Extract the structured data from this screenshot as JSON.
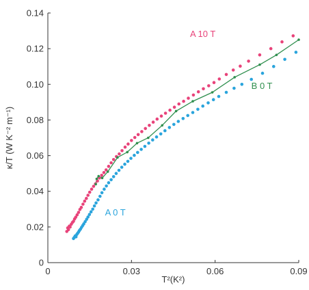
{
  "chart_data": {
    "type": "scatter",
    "xlabel": "T²(K²)",
    "ylabel": "κ/T (W K⁻² m⁻¹)",
    "xlim": [
      0,
      0.09
    ],
    "ylim": [
      0,
      0.14
    ],
    "xticks": [
      "0",
      "0.03",
      "0.06",
      "0.09"
    ],
    "yticks": [
      "0",
      "0.02",
      "0.04",
      "0.06",
      "0.08",
      "0.10",
      "0.12",
      "0.14"
    ],
    "grid": false,
    "series": [
      {
        "name": "A 10 T",
        "color": "#e8437a",
        "marker": "dot",
        "line": false,
        "x": [
          0.0068,
          0.0071,
          0.0074,
          0.0077,
          0.008,
          0.0084,
          0.0088,
          0.0092,
          0.0096,
          0.01,
          0.0105,
          0.011,
          0.0115,
          0.012,
          0.0126,
          0.0132,
          0.0138,
          0.0144,
          0.015,
          0.0157,
          0.0164,
          0.0171,
          0.0178,
          0.0185,
          0.0193,
          0.0201,
          0.0209,
          0.0218,
          0.0227,
          0.0236,
          0.0246,
          0.0256,
          0.0266,
          0.0277,
          0.0288,
          0.03,
          0.0312,
          0.0324,
          0.0337,
          0.035,
          0.0364,
          0.0378,
          0.0392,
          0.0407,
          0.0422,
          0.0438,
          0.0454,
          0.047,
          0.0487,
          0.0504,
          0.0522,
          0.054,
          0.0558,
          0.0577,
          0.0596,
          0.0615,
          0.064,
          0.0665,
          0.069,
          0.072,
          0.076,
          0.08,
          0.084,
          0.088
        ],
        "y": [
          0.0175,
          0.0195,
          0.0185,
          0.0205,
          0.02,
          0.0215,
          0.0225,
          0.0232,
          0.0245,
          0.0255,
          0.0268,
          0.0282,
          0.0298,
          0.031,
          0.0328,
          0.0345,
          0.036,
          0.0378,
          0.0395,
          0.0412,
          0.0428,
          0.0442,
          0.0458,
          0.0475,
          0.049,
          0.0505,
          0.052,
          0.054,
          0.056,
          0.0578,
          0.0595,
          0.061,
          0.0628,
          0.0648,
          0.0665,
          0.0685,
          0.0702,
          0.0718,
          0.0735,
          0.0752,
          0.077,
          0.0788,
          0.0805,
          0.0822,
          0.0838,
          0.0855,
          0.0872,
          0.089,
          0.0905,
          0.0922,
          0.094,
          0.0958,
          0.0975,
          0.0992,
          0.101,
          0.103,
          0.1055,
          0.108,
          0.1102,
          0.113,
          0.1165,
          0.12,
          0.1238,
          0.1272
        ]
      },
      {
        "name": "A 0 T",
        "color": "#2aa4dc",
        "marker": "dot",
        "line": false,
        "x": [
          0.0092,
          0.0095,
          0.0098,
          0.0101,
          0.0104,
          0.0107,
          0.011,
          0.0113,
          0.0117,
          0.0121,
          0.0125,
          0.0129,
          0.0134,
          0.0139,
          0.0144,
          0.0149,
          0.0155,
          0.0161,
          0.0167,
          0.0173,
          0.018,
          0.0187,
          0.0194,
          0.0202,
          0.021,
          0.0218,
          0.0227,
          0.0236,
          0.0245,
          0.0255,
          0.0265,
          0.0276,
          0.0287,
          0.0298,
          0.031,
          0.0322,
          0.0335,
          0.0348,
          0.0362,
          0.0376,
          0.039,
          0.0405,
          0.042,
          0.0436,
          0.0452,
          0.0468,
          0.0485,
          0.0502,
          0.052,
          0.0538,
          0.0556,
          0.0575,
          0.0594,
          0.0613,
          0.064,
          0.0668,
          0.0696,
          0.073,
          0.077,
          0.081,
          0.085,
          0.089
        ],
        "y": [
          0.0135,
          0.0142,
          0.015,
          0.0145,
          0.0158,
          0.0165,
          0.0172,
          0.018,
          0.0188,
          0.0198,
          0.0208,
          0.0218,
          0.023,
          0.0243,
          0.0256,
          0.027,
          0.0285,
          0.03,
          0.0318,
          0.0335,
          0.0352,
          0.0372,
          0.0392,
          0.0412,
          0.043,
          0.0448,
          0.0465,
          0.0482,
          0.05,
          0.0518,
          0.0535,
          0.0552,
          0.0568,
          0.0585,
          0.0602,
          0.0618,
          0.0635,
          0.0652,
          0.067,
          0.0688,
          0.0705,
          0.0722,
          0.074,
          0.0758,
          0.0775,
          0.0792,
          0.0808,
          0.0825,
          0.0842,
          0.086,
          0.0878,
          0.0896,
          0.0914,
          0.0932,
          0.0955,
          0.0978,
          0.1,
          0.1028,
          0.1062,
          0.11,
          0.114,
          0.118
        ]
      },
      {
        "name": "B 0 T",
        "color": "#2f8f4e",
        "marker": "dot",
        "line": true,
        "x": [
          0.0172,
          0.0175,
          0.0182,
          0.0195,
          0.0215,
          0.025,
          0.0285,
          0.032,
          0.036,
          0.041,
          0.046,
          0.052,
          0.059,
          0.067,
          0.076,
          0.082,
          0.09
        ],
        "y": [
          0.044,
          0.047,
          0.0485,
          0.0475,
          0.051,
          0.059,
          0.062,
          0.067,
          0.07,
          0.077,
          0.085,
          0.0905,
          0.0955,
          0.104,
          0.111,
          0.1165,
          0.125
        ]
      }
    ],
    "annotations": [
      {
        "text": "A 10 T",
        "x": 0.051,
        "y": 0.1265,
        "color": "#e8437a"
      },
      {
        "text": "B 0 T",
        "x": 0.073,
        "y": 0.0975,
        "color": "#2f8f4e"
      },
      {
        "text": "A 0 T",
        "x": 0.0205,
        "y": 0.0265,
        "color": "#2aa4dc"
      }
    ]
  }
}
